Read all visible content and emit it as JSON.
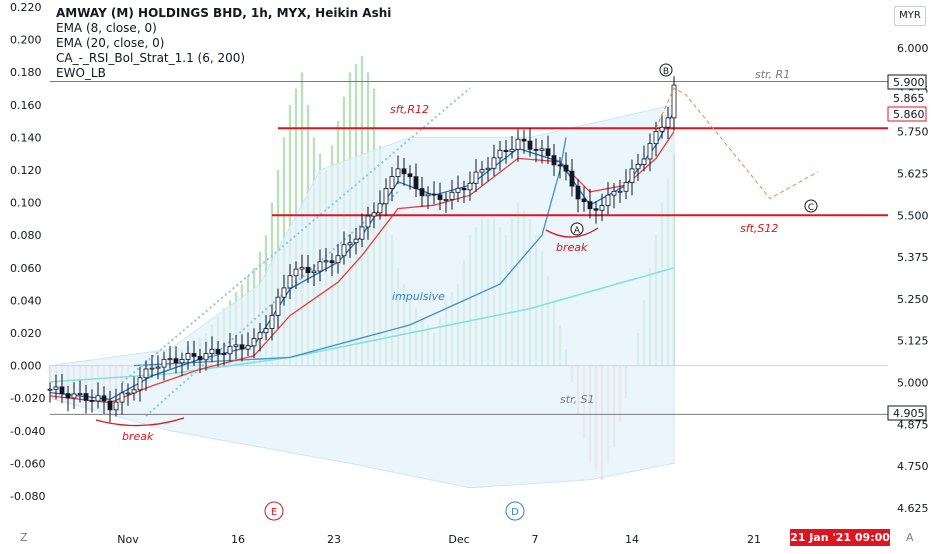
{
  "header": {
    "title": "AMWAY (M) HOLDINGS BHD, 1h, MYX, Heikin Ashi",
    "indicators": [
      "EMA (8, close, 0)",
      "EMA (20, close, 0)",
      "CA_-_RSI_Bol_Strat_1.1 (6, 200)",
      "EWO_LB"
    ],
    "currency": "MYR"
  },
  "footer": {
    "time_badge": "21 Jan '21  09:00",
    "left_corner": "Z",
    "right_corner": "A"
  },
  "chart_data": {
    "type": "candlestick",
    "price_axis": {
      "ticks": [
        "6.000",
        "5.875",
        "5.750",
        "5.625",
        "5.500",
        "5.375",
        "5.250",
        "5.125",
        "5.000",
        "4.875",
        "4.750",
        "4.625"
      ],
      "range": [
        4.6,
        6.1
      ],
      "price_labels": [
        "5.900",
        "5.865",
        "5.860",
        "4.905"
      ]
    },
    "oscillator_axis": {
      "ticks": [
        "0.220",
        "0.200",
        "0.180",
        "0.160",
        "0.140",
        "0.120",
        "0.100",
        "0.080",
        "0.060",
        "0.040",
        "0.020",
        "0.000",
        "-0.020",
        "-0.040",
        "-0.060",
        "-0.080"
      ],
      "range": [
        -0.08,
        0.22
      ]
    },
    "time_axis": [
      "Nov",
      "16",
      "23",
      "Dec",
      "7",
      "14",
      "21"
    ],
    "levels": [
      {
        "label": "str, R1",
        "price": 5.9,
        "color": "#787b86"
      },
      {
        "label": "sft,R12",
        "price": 5.76,
        "color": "#e0141e"
      },
      {
        "label": "sft,S12",
        "price": 5.5,
        "color": "#e0141e"
      },
      {
        "label": "str, S1",
        "price": 4.905,
        "color": "#787b86"
      }
    ],
    "annotations": [
      "impulsive",
      "break",
      "break",
      "A",
      "B",
      "C",
      "E",
      "D"
    ],
    "price_path": [
      [
        0,
        4.98
      ],
      [
        4,
        4.96
      ],
      [
        8,
        4.95
      ],
      [
        10,
        4.93
      ],
      [
        13,
        4.97
      ],
      [
        17,
        5.05
      ],
      [
        21,
        5.07
      ],
      [
        25,
        5.08
      ],
      [
        30,
        5.1
      ],
      [
        34,
        5.12
      ],
      [
        37,
        5.2
      ],
      [
        40,
        5.33
      ],
      [
        44,
        5.34
      ],
      [
        48,
        5.38
      ],
      [
        52,
        5.46
      ],
      [
        56,
        5.57
      ],
      [
        58,
        5.65
      ],
      [
        61,
        5.58
      ],
      [
        64,
        5.55
      ],
      [
        67,
        5.56
      ],
      [
        70,
        5.6
      ],
      [
        74,
        5.67
      ],
      [
        78,
        5.72
      ],
      [
        81,
        5.7
      ],
      [
        85,
        5.65
      ],
      [
        88,
        5.56
      ],
      [
        90,
        5.51
      ],
      [
        93,
        5.55
      ],
      [
        96,
        5.6
      ],
      [
        99,
        5.68
      ],
      [
        101,
        5.74
      ],
      [
        103,
        5.8
      ],
      [
        104,
        5.88
      ]
    ],
    "ema8": [
      [
        0,
        4.97
      ],
      [
        10,
        4.95
      ],
      [
        17,
        5.02
      ],
      [
        25,
        5.07
      ],
      [
        34,
        5.11
      ],
      [
        40,
        5.28
      ],
      [
        48,
        5.36
      ],
      [
        52,
        5.44
      ],
      [
        58,
        5.6
      ],
      [
        64,
        5.56
      ],
      [
        70,
        5.59
      ],
      [
        78,
        5.7
      ],
      [
        85,
        5.66
      ],
      [
        90,
        5.53
      ],
      [
        96,
        5.59
      ],
      [
        101,
        5.71
      ],
      [
        104,
        5.81
      ]
    ],
    "ema20": [
      [
        0,
        4.96
      ],
      [
        10,
        4.94
      ],
      [
        17,
        4.99
      ],
      [
        25,
        5.04
      ],
      [
        34,
        5.08
      ],
      [
        40,
        5.2
      ],
      [
        48,
        5.3
      ],
      [
        52,
        5.38
      ],
      [
        58,
        5.52
      ],
      [
        64,
        5.53
      ],
      [
        70,
        5.56
      ],
      [
        78,
        5.67
      ],
      [
        85,
        5.66
      ],
      [
        90,
        5.57
      ],
      [
        96,
        5.59
      ],
      [
        101,
        5.67
      ],
      [
        104,
        5.75
      ]
    ],
    "rsi_histogram": [
      [
        0,
        -0.01
      ],
      [
        5,
        -0.015
      ],
      [
        10,
        -0.02
      ],
      [
        14,
        0.0
      ],
      [
        18,
        0.005
      ],
      [
        22,
        0.01
      ],
      [
        26,
        0.02
      ],
      [
        30,
        0.04
      ],
      [
        34,
        0.06
      ],
      [
        36,
        0.08
      ],
      [
        38,
        0.12
      ],
      [
        40,
        0.16
      ],
      [
        42,
        0.18
      ],
      [
        44,
        0.14
      ],
      [
        46,
        0.12
      ],
      [
        48,
        0.15
      ],
      [
        50,
        0.18
      ],
      [
        52,
        0.19
      ],
      [
        54,
        0.17
      ],
      [
        56,
        0.1
      ],
      [
        58,
        0.06
      ],
      [
        60,
        0.04
      ],
      [
        62,
        0.03
      ],
      [
        64,
        0.02
      ],
      [
        66,
        0.04
      ],
      [
        68,
        0.05
      ],
      [
        70,
        0.08
      ],
      [
        72,
        0.09
      ],
      [
        74,
        0.09
      ],
      [
        76,
        0.08
      ],
      [
        78,
        0.1
      ],
      [
        80,
        0.09
      ],
      [
        82,
        0.07
      ],
      [
        84,
        0.04
      ],
      [
        86,
        0.01
      ],
      [
        88,
        -0.03
      ],
      [
        90,
        -0.06
      ],
      [
        92,
        -0.07
      ],
      [
        94,
        -0.05
      ],
      [
        96,
        -0.02
      ],
      [
        98,
        0.02
      ],
      [
        100,
        0.06
      ],
      [
        102,
        0.1
      ],
      [
        104,
        0.13
      ]
    ],
    "bollinger_band": {
      "upper": [
        [
          0,
          0.0
        ],
        [
          20,
          0.01
        ],
        [
          35,
          0.05
        ],
        [
          45,
          0.12
        ],
        [
          60,
          0.14
        ],
        [
          80,
          0.14
        ],
        [
          104,
          0.16
        ]
      ],
      "lower": [
        [
          0,
          -0.02
        ],
        [
          20,
          -0.04
        ],
        [
          35,
          -0.05
        ],
        [
          50,
          -0.06
        ],
        [
          70,
          -0.075
        ],
        [
          90,
          -0.07
        ],
        [
          104,
          -0.06
        ]
      ]
    },
    "ewo_line": [
      [
        0,
        -0.01
      ],
      [
        20,
        -0.005
      ],
      [
        40,
        0.005
      ],
      [
        60,
        0.02
      ],
      [
        80,
        0.035
      ],
      [
        104,
        0.06
      ]
    ],
    "impulsive_curve": [
      [
        14,
        0.0
      ],
      [
        40,
        0.005
      ],
      [
        60,
        0.025
      ],
      [
        75,
        0.05
      ],
      [
        82,
        0.08
      ],
      [
        85,
        0.12
      ],
      [
        86,
        0.14
      ]
    ],
    "projection": [
      [
        101,
        5.76
      ],
      [
        104,
        5.88
      ],
      [
        106,
        5.86
      ],
      [
        120,
        5.55
      ],
      [
        128,
        5.63
      ]
    ]
  }
}
